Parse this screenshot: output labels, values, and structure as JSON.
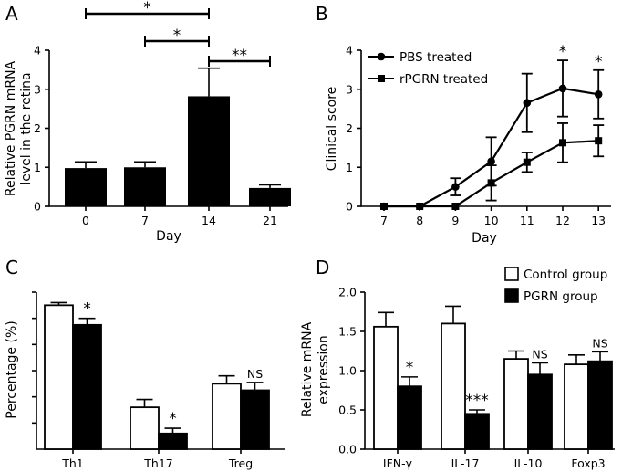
{
  "chart_data": [
    {
      "panel": "A",
      "type": "bar",
      "categories": [
        "0",
        "7",
        "14",
        "21"
      ],
      "values": [
        0.98,
        1.0,
        2.82,
        0.47
      ],
      "errors": [
        0.16,
        0.14,
        0.72,
        0.08
      ],
      "xlabel": "Day",
      "ylabel_lines": [
        "Relative PGRN mRNA",
        "level in the retina"
      ],
      "ylim": [
        0,
        4
      ],
      "yticks": [
        "0",
        "1",
        "2",
        "3",
        "4"
      ],
      "brackets": [
        {
          "from": 0,
          "to": 2,
          "label": "*"
        },
        {
          "from": 1,
          "to": 2,
          "label": "*"
        },
        {
          "from": 2,
          "to": 3,
          "label": "**"
        }
      ]
    },
    {
      "panel": "B",
      "type": "line",
      "x": [
        7,
        8,
        9,
        10,
        11,
        12,
        13
      ],
      "xticks": [
        "7",
        "8",
        "9",
        "10",
        "11",
        "12",
        "13"
      ],
      "series": [
        {
          "name": "PBS treated",
          "marker": "circle",
          "values": [
            0,
            0,
            0.5,
            1.15,
            2.65,
            3.02,
            2.87
          ],
          "errors": [
            0,
            0,
            0.22,
            0.62,
            0.75,
            0.72,
            0.62
          ]
        },
        {
          "name": "rPGRN treated",
          "marker": "square",
          "values": [
            0,
            0,
            0,
            0.6,
            1.13,
            1.63,
            1.68
          ],
          "errors": [
            0,
            0,
            0,
            0.45,
            0.25,
            0.5,
            0.4
          ]
        }
      ],
      "xlabel": "Day",
      "ylabel": "Clinical score",
      "ylim": [
        0,
        4
      ],
      "yticks": [
        "0",
        "1",
        "2",
        "3",
        "4"
      ],
      "annotations": [
        {
          "x": 12,
          "label": "*"
        },
        {
          "x": 13,
          "label": "*"
        }
      ]
    },
    {
      "panel": "C",
      "type": "bar",
      "categories": [
        "Th1",
        "Th17",
        "Treg"
      ],
      "series": [
        {
          "name": "Control group",
          "fill": "white",
          "values": [
            5.5,
            1.6,
            2.5
          ],
          "errors": [
            0.1,
            0.3,
            0.3
          ]
        },
        {
          "name": "PGRN group",
          "fill": "black",
          "values": [
            4.75,
            0.6,
            2.25
          ],
          "errors": [
            0.25,
            0.2,
            0.3
          ]
        }
      ],
      "ylabel": "Percentage (%)",
      "ylim": [
        0,
        6
      ],
      "significance": [
        "*",
        "*",
        "NS"
      ]
    },
    {
      "panel": "D",
      "type": "bar",
      "categories": [
        "IFN-γ",
        "IL-17",
        "IL-10",
        "Foxp3"
      ],
      "series": [
        {
          "name": "Control group",
          "fill": "white",
          "values": [
            1.56,
            1.6,
            1.15,
            1.08
          ],
          "errors": [
            0.18,
            0.22,
            0.1,
            0.12
          ]
        },
        {
          "name": "PGRN group",
          "fill": "black",
          "values": [
            0.8,
            0.45,
            0.95,
            1.12
          ],
          "errors": [
            0.12,
            0.05,
            0.15,
            0.12
          ]
        }
      ],
      "ylabel_lines": [
        "Relative mRNA",
        "expression"
      ],
      "ylim": [
        0,
        2.0
      ],
      "yticks": [
        "0.0",
        "0.5",
        "1.0",
        "1.5",
        "2.0"
      ],
      "significance": [
        "*",
        "***",
        "NS",
        "NS"
      ],
      "legend": [
        "Control group",
        "PGRN group"
      ]
    }
  ]
}
